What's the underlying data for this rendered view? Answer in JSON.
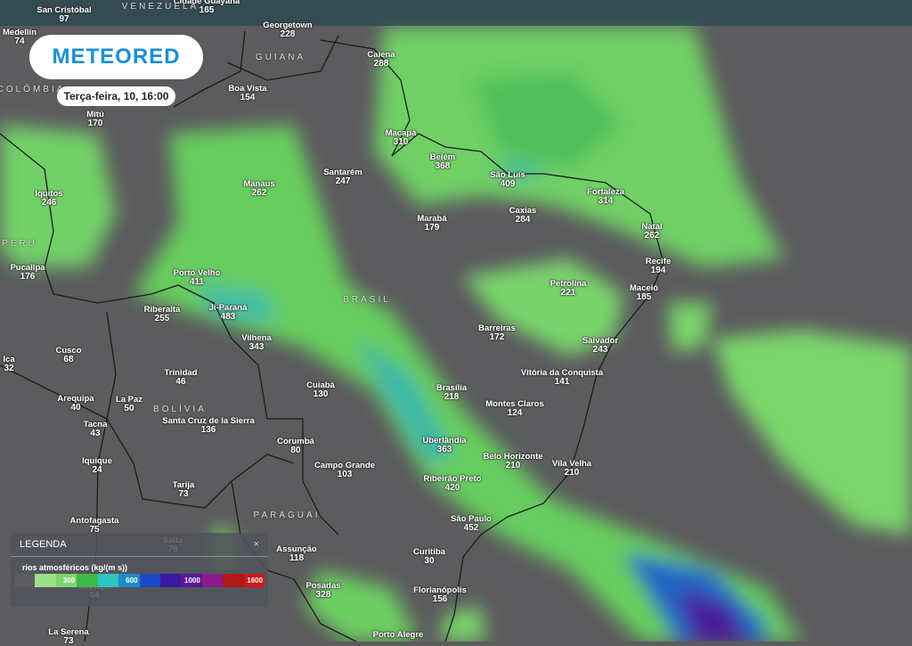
{
  "brand": {
    "logo": "METEORED",
    "datetime": "Terça-feira, 10, 16:00"
  },
  "countries": [
    {
      "name": "VENEZUELA"
    },
    {
      "name": "COLÔMBIA"
    },
    {
      "name": "GUIANA"
    },
    {
      "name": "PERU"
    },
    {
      "name": "BRASIL"
    },
    {
      "name": "BOLÍVIA"
    },
    {
      "name": "PARAGUAI"
    }
  ],
  "cities": [
    {
      "name": "San Cristóbal",
      "value": "97"
    },
    {
      "name": "Cidade Guayana",
      "value": "165"
    },
    {
      "name": "Medellín",
      "value": "74"
    },
    {
      "name": "Georgetown",
      "value": "228"
    },
    {
      "name": "Caiena",
      "value": "288"
    },
    {
      "name": "Boa Vista",
      "value": "154"
    },
    {
      "name": "Mitú",
      "value": "170"
    },
    {
      "name": "Macapá",
      "value": "310"
    },
    {
      "name": "Belém",
      "value": "368"
    },
    {
      "name": "Manaus",
      "value": "262"
    },
    {
      "name": "Santarém",
      "value": "247"
    },
    {
      "name": "São Luís",
      "value": "409"
    },
    {
      "name": "Fortaleza",
      "value": "314"
    },
    {
      "name": "Iquitos",
      "value": "246"
    },
    {
      "name": "Caxias",
      "value": "284"
    },
    {
      "name": "Marabá",
      "value": "179"
    },
    {
      "name": "Natal",
      "value": "262"
    },
    {
      "name": "Pucallpa",
      "value": "176"
    },
    {
      "name": "Recife",
      "value": "194"
    },
    {
      "name": "Porto Velho",
      "value": "411"
    },
    {
      "name": "Petrolina",
      "value": "221"
    },
    {
      "name": "Maceió",
      "value": "185"
    },
    {
      "name": "Riberalta",
      "value": "255"
    },
    {
      "name": "Ji-Paraná",
      "value": "483"
    },
    {
      "name": "Vilhena",
      "value": "343"
    },
    {
      "name": "Barreiras",
      "value": "172"
    },
    {
      "name": "Salvador",
      "value": "243"
    },
    {
      "name": "Cusco",
      "value": "68"
    },
    {
      "name": "Ica",
      "value": "32"
    },
    {
      "name": "Vitória da Conquista",
      "value": "141"
    },
    {
      "name": "Trinidad",
      "value": "46"
    },
    {
      "name": "Brasília",
      "value": "218"
    },
    {
      "name": "Cuiabá",
      "value": "130"
    },
    {
      "name": "Arequipa",
      "value": "40"
    },
    {
      "name": "La Paz",
      "value": "50"
    },
    {
      "name": "Montes Claros",
      "value": "124"
    },
    {
      "name": "Tacna",
      "value": "43"
    },
    {
      "name": "Santa Cruz de la Sierra",
      "value": "136"
    },
    {
      "name": "Uberlândia",
      "value": "363"
    },
    {
      "name": "Corumbá",
      "value": "80"
    },
    {
      "name": "Belo Horizonte",
      "value": "210"
    },
    {
      "name": "Iquique",
      "value": "24"
    },
    {
      "name": "Vila Velha",
      "value": "210"
    },
    {
      "name": "Campo Grande",
      "value": "103"
    },
    {
      "name": "Ribeirão Preto",
      "value": "420"
    },
    {
      "name": "Tarija",
      "value": "73"
    },
    {
      "name": "Antofagasta",
      "value": "75"
    },
    {
      "name": "São Paulo",
      "value": "452"
    },
    {
      "name": "Salta",
      "value": "76"
    },
    {
      "name": "Assunção",
      "value": "118"
    },
    {
      "name": "Curitiba",
      "value": "30"
    },
    {
      "name": "Posadas",
      "value": "328"
    },
    {
      "name": "Florianópolis",
      "value": "156"
    },
    {
      "name": "Copiapó",
      "value": "64"
    },
    {
      "name": "La Serena",
      "value": "73"
    },
    {
      "name": "Porto Alegre",
      "value": ""
    }
  ],
  "legend": {
    "title": "LEGENDA",
    "close": "×",
    "variable": "rios atmosféricos (kg/(m s))",
    "scale": [
      {
        "color": "#5c5c5e",
        "label": ""
      },
      {
        "color": "#9be08a",
        "label": ""
      },
      {
        "color": "#7ed36d",
        "label": "300"
      },
      {
        "color": "#3db94b",
        "label": ""
      },
      {
        "color": "#2cc4c4",
        "label": ""
      },
      {
        "color": "#1e8cc8",
        "label": "600"
      },
      {
        "color": "#1f48c8",
        "label": ""
      },
      {
        "color": "#3a1a9e",
        "label": ""
      },
      {
        "color": "#5a1896",
        "label": "1000"
      },
      {
        "color": "#8a1c8a",
        "label": ""
      },
      {
        "color": "#b01818",
        "label": ""
      },
      {
        "color": "#d01818",
        "label": "1600"
      }
    ]
  }
}
